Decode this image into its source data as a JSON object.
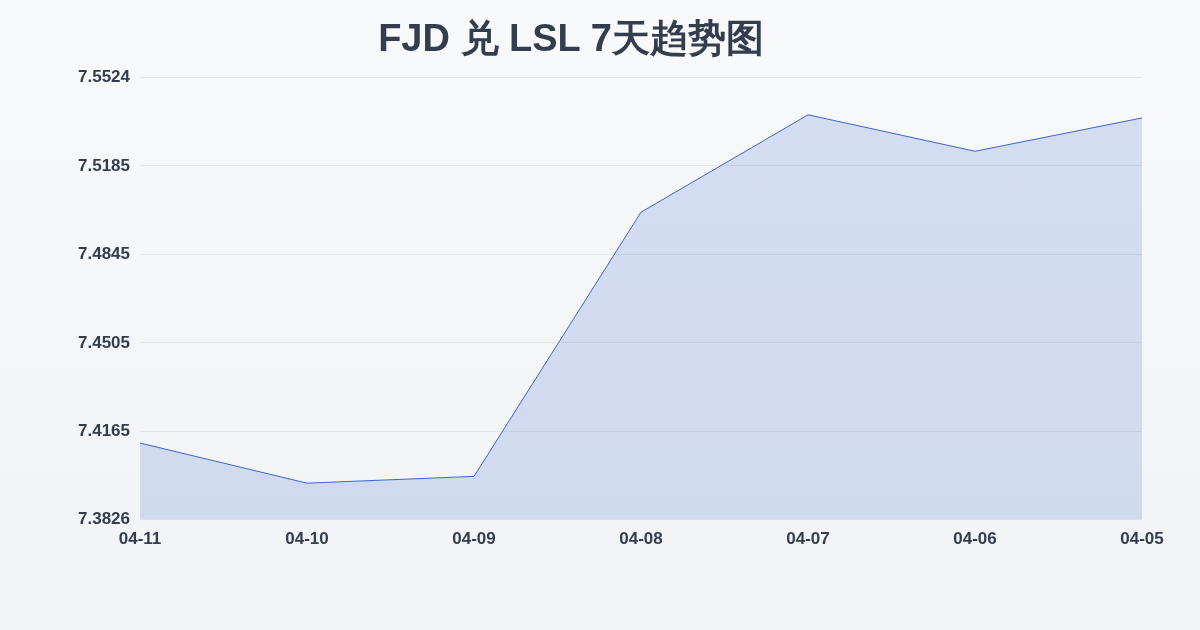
{
  "chart_data": {
    "type": "area",
    "title": "FJD 兑 LSL 7天趋势图",
    "categories": [
      "04-11",
      "04-10",
      "04-09",
      "04-08",
      "04-07",
      "04-06",
      "04-05"
    ],
    "series": [
      {
        "color": "#3a66cc",
        "values": [
          7.412,
          7.3966,
          7.3992,
          7.5007,
          7.5381,
          7.5241,
          7.5369
        ]
      }
    ],
    "ylim": [
      7.3826,
      7.5524
    ],
    "yticks": [
      7.3826,
      7.4165,
      7.4505,
      7.4845,
      7.5185,
      7.5524
    ],
    "grid": "y",
    "legend": false
  }
}
